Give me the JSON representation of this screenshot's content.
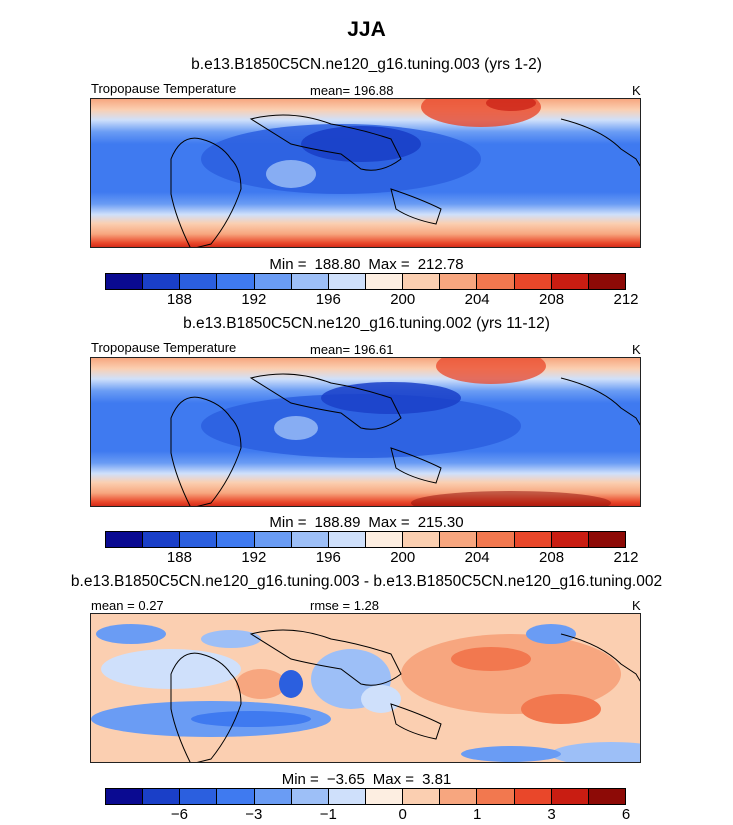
{
  "title": "JJA",
  "palette": [
    "#0a0a91",
    "#1a3fc8",
    "#2b5fdf",
    "#3f7af0",
    "#6a9cf4",
    "#9dbff7",
    "#cfe0fb",
    "#fdeee1",
    "#fbcfb1",
    "#f7a67f",
    "#f2784f",
    "#e9472a",
    "#c91d12",
    "#8d0a06"
  ],
  "panels": [
    {
      "title": "b.e13.B1850C5CN.ne120_g16.tuning.003 (yrs 1-2)",
      "variable": "Tropopause Temperature",
      "mean_label": "mean=",
      "mean_value": "196.88",
      "units": "K",
      "min_label": "Min =",
      "min_value": "188.80",
      "max_label": "Max =",
      "max_value": "212.78",
      "colorbar_ticks": [
        "188",
        "192",
        "196",
        "200",
        "204",
        "208",
        "212"
      ]
    },
    {
      "title": "b.e13.B1850C5CN.ne120_g16.tuning.002 (yrs 11-12)",
      "variable": "Tropopause Temperature",
      "mean_label": "mean=",
      "mean_value": "196.61",
      "units": "K",
      "min_label": "Min =",
      "min_value": "188.89",
      "max_label": "Max =",
      "max_value": "215.30",
      "colorbar_ticks": [
        "188",
        "192",
        "196",
        "200",
        "204",
        "208",
        "212"
      ]
    },
    {
      "title": "b.e13.B1850C5CN.ne120_g16.tuning.003 - b.e13.B1850C5CN.ne120_g16.tuning.002",
      "mean_label": "mean =",
      "mean_value": "0.27",
      "rmse_label": "rmse =",
      "rmse_value": "1.28",
      "units": "K",
      "min_label": "Min =",
      "min_value": "−3.65",
      "max_label": "Max =",
      "max_value": "3.81",
      "colorbar_ticks": [
        "−6",
        "−3",
        "−1",
        "0",
        "1",
        "3",
        "6"
      ]
    }
  ],
  "chart_data": [
    {
      "type": "heatmap",
      "title": "b.e13.B1850C5CN.ne120_g16.tuning.003 (yrs 1-2)",
      "variable": "Tropopause Temperature",
      "units": "K",
      "season": "JJA",
      "mean": 196.88,
      "min": 188.8,
      "max": 212.78,
      "colorbar_levels": [
        186,
        188,
        190,
        192,
        194,
        196,
        198,
        200,
        202,
        204,
        206,
        208,
        210,
        212,
        214
      ],
      "colorbar_tick_values": [
        188,
        192,
        196,
        200,
        204,
        208,
        212
      ]
    },
    {
      "type": "heatmap",
      "title": "b.e13.B1850C5CN.ne120_g16.tuning.002 (yrs 11-12)",
      "variable": "Tropopause Temperature",
      "units": "K",
      "season": "JJA",
      "mean": 196.61,
      "min": 188.89,
      "max": 215.3,
      "colorbar_levels": [
        186,
        188,
        190,
        192,
        194,
        196,
        198,
        200,
        202,
        204,
        206,
        208,
        210,
        212,
        214
      ],
      "colorbar_tick_values": [
        188,
        192,
        196,
        200,
        204,
        208,
        212
      ]
    },
    {
      "type": "heatmap",
      "title": "b.e13.B1850C5CN.ne120_g16.tuning.003 - b.e13.B1850C5CN.ne120_g16.tuning.002",
      "units": "K",
      "season": "JJA",
      "mean": 0.27,
      "rmse": 1.28,
      "min": -3.65,
      "max": 3.81,
      "colorbar_tick_values": [
        -6,
        -3,
        -1,
        0,
        1,
        3,
        6
      ]
    }
  ]
}
